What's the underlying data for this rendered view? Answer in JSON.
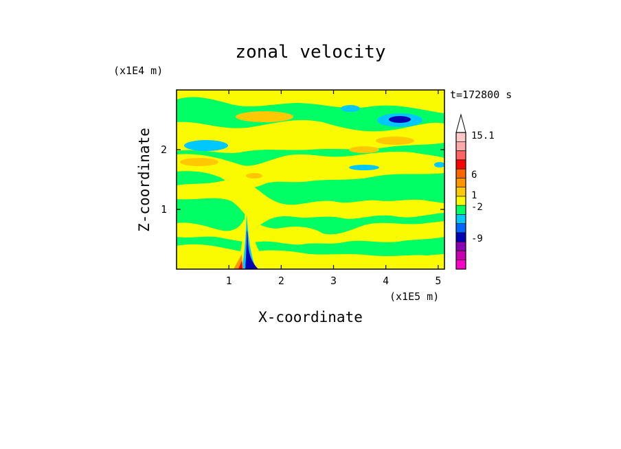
{
  "chart_data": {
    "type": "heatmap",
    "title": "zonal velocity",
    "xlabel": "X-coordinate",
    "ylabel": "Z-coordinate",
    "x_scale_label": "(x1E5 m)",
    "y_scale_label": "(x1E4 m)",
    "time_label": "t=172800 s",
    "x_ticks": [
      "1",
      "2",
      "3",
      "4",
      "5"
    ],
    "y_ticks": [
      "1",
      "2"
    ],
    "xlim": [
      0,
      5.12
    ],
    "ylim": [
      0,
      3.0
    ],
    "colorbar": {
      "labels": [
        "15.1",
        "6",
        "1",
        "-2",
        "-9"
      ],
      "colors": [
        "#ff00c8",
        "#c800b4",
        "#8c00b4",
        "#0000b4",
        "#0064ff",
        "#00c8ff",
        "#00ff64",
        "#fafa00",
        "#ffc800",
        "#ff9600",
        "#ff6400",
        "#ff0000",
        "#ff6464",
        "#ffaaaa",
        "#ffc8c8"
      ]
    },
    "field_regions": {
      "background": "#00ff64",
      "regions": [
        {
          "level": "1",
          "color": "#fafa00"
        },
        {
          "level": "3",
          "color": "#ffc800"
        },
        {
          "level": "-2",
          "color": "#00c8ff"
        },
        {
          "level": "-5",
          "color": "#0000b4"
        }
      ]
    }
  }
}
